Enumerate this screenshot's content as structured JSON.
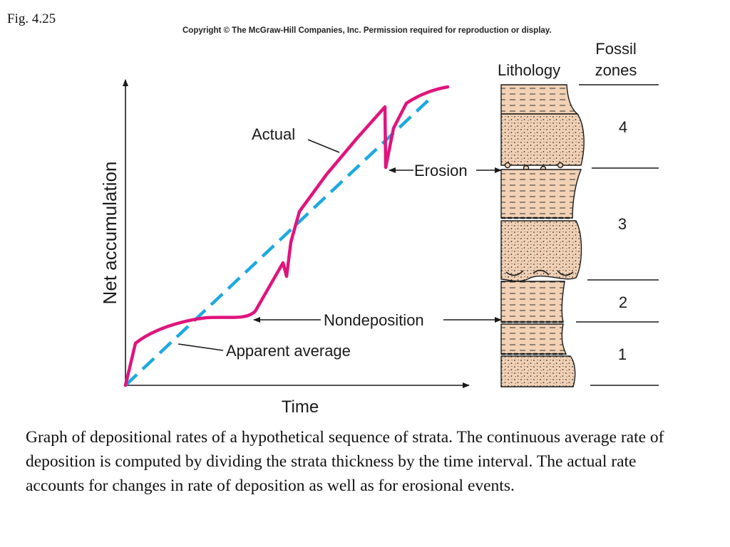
{
  "figure": {
    "label": "Fig. 4.25",
    "copyright": "Copyright © The McGraw-Hill Companies, Inc. Permission required for reproduction or display.",
    "caption": "Graph of depositional rates of a hypothetical sequence of strata. The continuous average rate of deposition is computed by dividing the strata thickness by the time interval. The actual rate accounts for changes in rate of deposition as well as for erosional events."
  },
  "graph": {
    "x_axis_label": "Time",
    "y_axis_label": "Net accumulation",
    "annotations": {
      "actual": "Actual",
      "erosion": "Erosion",
      "nondeposition": "Nondeposition",
      "apparent_average": "Apparent average"
    }
  },
  "column": {
    "lithology_header": "Lithology",
    "fossil_header_line1": "Fossil",
    "fossil_header_line2": "zones",
    "zones": [
      "4",
      "3",
      "2",
      "1"
    ]
  },
  "colors": {
    "actual_curve": "#e0147e",
    "average_line": "#1ea9e1",
    "rock_fill": "#f2d1b5",
    "outline": "#1a1a1a"
  }
}
